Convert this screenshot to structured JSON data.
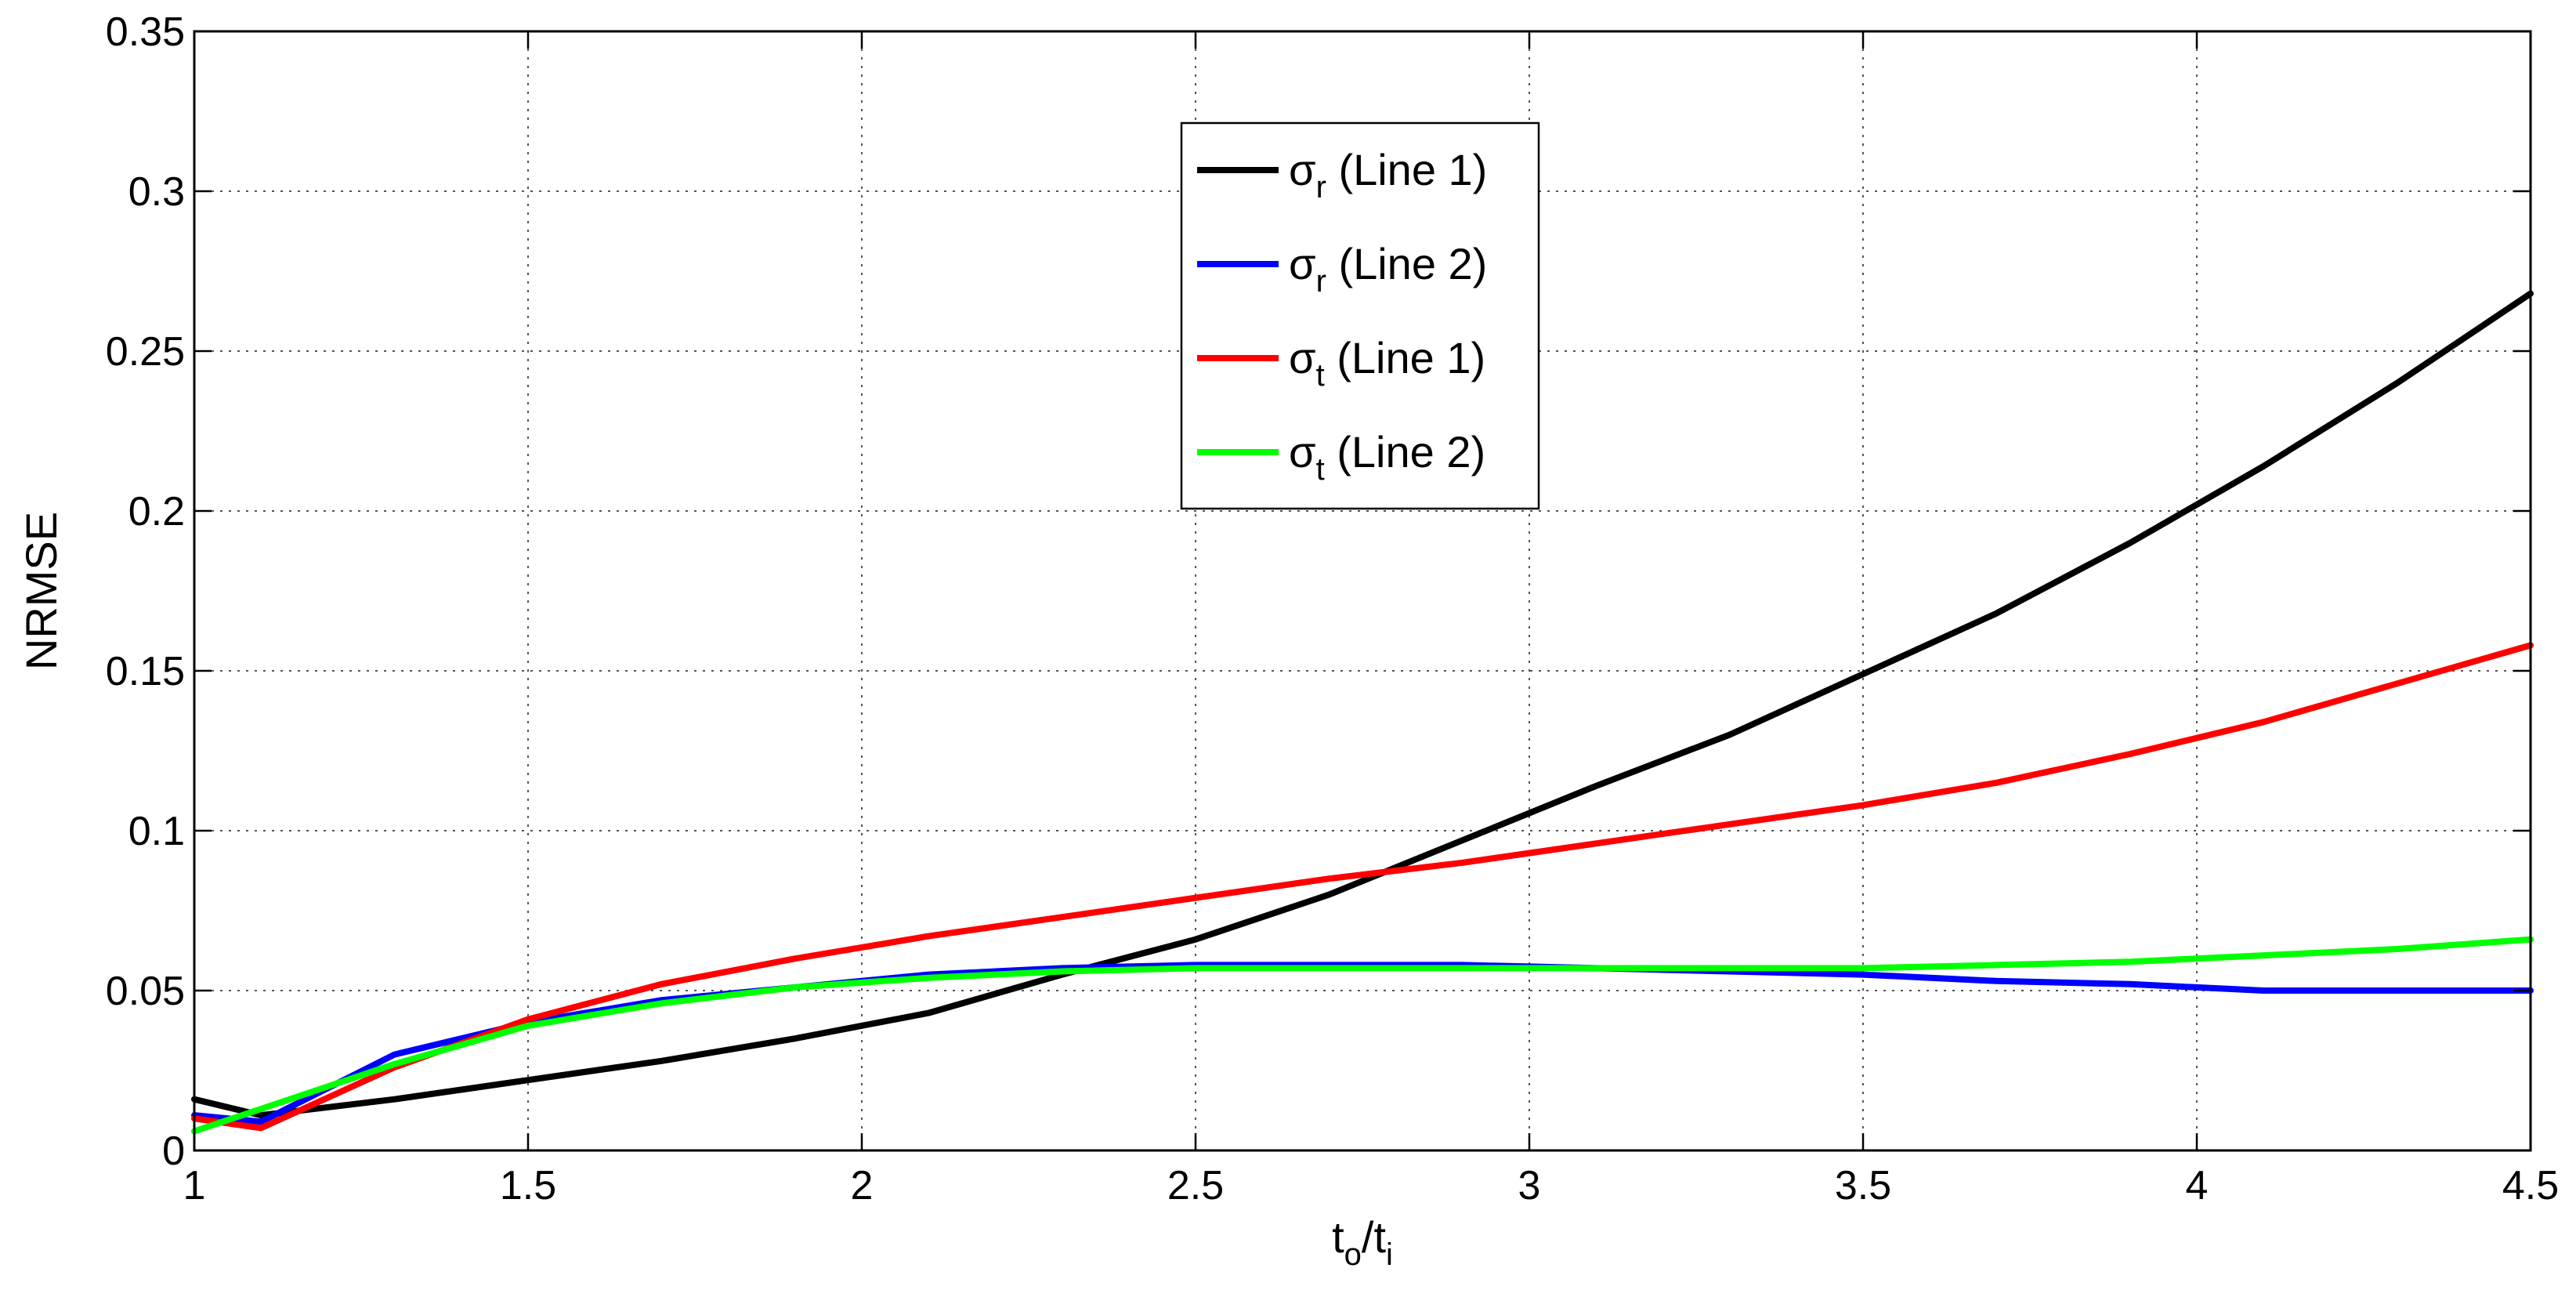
{
  "chart_data": {
    "type": "line",
    "xlabel": {
      "main": "t",
      "sub1": "o",
      "sep": "/t",
      "sub2": "i"
    },
    "ylabel": "NRMSE",
    "xlim": [
      1,
      4.5
    ],
    "ylim": [
      0,
      0.35
    ],
    "x_ticks": [
      "1",
      "1.5",
      "2",
      "2.5",
      "3",
      "3.5",
      "4",
      "4.5"
    ],
    "y_ticks": [
      "0",
      "0.05",
      "0.1",
      "0.15",
      "0.2",
      "0.25",
      "0.3",
      "0.35"
    ],
    "grid": true,
    "legend_position": "top-center",
    "series": [
      {
        "name": "σr (Line 1)",
        "legend": {
          "sym": "σ",
          "sub": "r",
          "rest": " (Line 1)"
        },
        "color": "#000000",
        "x": [
          1,
          1.1,
          1.3,
          1.5,
          1.7,
          1.9,
          2.1,
          2.3,
          2.5,
          2.7,
          2.9,
          3.1,
          3.3,
          3.5,
          3.7,
          3.9,
          4.1,
          4.3,
          4.5
        ],
        "y": [
          0.016,
          0.011,
          0.016,
          0.022,
          0.028,
          0.035,
          0.043,
          0.055,
          0.066,
          0.08,
          0.097,
          0.114,
          0.13,
          0.149,
          0.168,
          0.19,
          0.214,
          0.24,
          0.268
        ]
      },
      {
        "name": "σr (Line 2)",
        "legend": {
          "sym": "σ",
          "sub": "r",
          "rest": " (Line 2)"
        },
        "color": "#0000ff",
        "x": [
          1,
          1.1,
          1.3,
          1.5,
          1.7,
          1.9,
          2.1,
          2.3,
          2.5,
          2.7,
          2.9,
          3.1,
          3.3,
          3.5,
          3.7,
          3.9,
          4.1,
          4.3,
          4.5
        ],
        "y": [
          0.011,
          0.009,
          0.03,
          0.04,
          0.047,
          0.051,
          0.055,
          0.057,
          0.058,
          0.058,
          0.058,
          0.057,
          0.056,
          0.055,
          0.053,
          0.052,
          0.05,
          0.05,
          0.05
        ]
      },
      {
        "name": "σt (Line 1)",
        "legend": {
          "sym": "σ",
          "sub": "t",
          "rest": " (Line 1)"
        },
        "color": "#ff0000",
        "x": [
          1,
          1.1,
          1.3,
          1.5,
          1.7,
          1.9,
          2.1,
          2.3,
          2.5,
          2.7,
          2.9,
          3.1,
          3.3,
          3.5,
          3.7,
          3.9,
          4.1,
          4.3,
          4.5
        ],
        "y": [
          0.01,
          0.007,
          0.026,
          0.041,
          0.052,
          0.06,
          0.067,
          0.073,
          0.079,
          0.085,
          0.09,
          0.096,
          0.102,
          0.108,
          0.115,
          0.124,
          0.134,
          0.146,
          0.158
        ]
      },
      {
        "name": "σt (Line 2)",
        "legend": {
          "sym": "σ",
          "sub": "t",
          "rest": " (Line 2)"
        },
        "color": "#00ff00",
        "x": [
          1,
          1.1,
          1.3,
          1.5,
          1.7,
          1.9,
          2.1,
          2.3,
          2.5,
          2.7,
          2.9,
          3.1,
          3.3,
          3.5,
          3.7,
          3.9,
          4.1,
          4.3,
          4.5
        ],
        "y": [
          0.006,
          0.013,
          0.027,
          0.039,
          0.046,
          0.051,
          0.054,
          0.056,
          0.057,
          0.057,
          0.057,
          0.057,
          0.057,
          0.057,
          0.058,
          0.059,
          0.061,
          0.063,
          0.066
        ]
      }
    ]
  }
}
